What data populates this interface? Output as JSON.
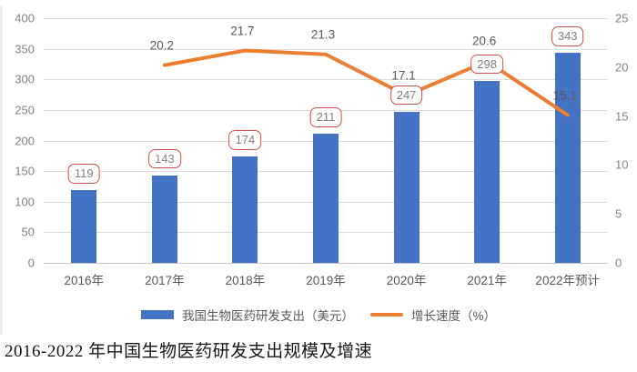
{
  "chart_data": {
    "type": "bar+line",
    "categories": [
      "2016年",
      "2017年",
      "2018年",
      "2019年",
      "2020年",
      "2021年",
      "2022年预计"
    ],
    "series": [
      {
        "name": "我国生物医药研发支出（美元）",
        "type": "bar",
        "axis": "left",
        "values": [
          119,
          143,
          174,
          211,
          247,
          298,
          343
        ],
        "point_labels": [
          "119",
          "143",
          "174",
          "211",
          "247",
          "298",
          "343"
        ]
      },
      {
        "name": "增长速度（%）",
        "type": "line",
        "axis": "right",
        "values": [
          null,
          20.2,
          21.7,
          21.3,
          17.1,
          20.6,
          15.1
        ],
        "point_labels": [
          null,
          "20.2",
          "21.7",
          "21.3",
          "17.1",
          "20.6",
          "15.1"
        ]
      }
    ],
    "left_axis": {
      "min": 0,
      "max": 400,
      "step": 50,
      "labels": [
        "400",
        "350",
        "300",
        "250",
        "200",
        "150",
        "100",
        "50",
        "0"
      ]
    },
    "right_axis": {
      "min": 0,
      "max": 25,
      "step": 5,
      "labels": [
        "25",
        "20",
        "15",
        "10",
        "5",
        "0"
      ]
    },
    "grid": true,
    "legend_position": "bottom",
    "title": "2016-2022 年中国生物医药研发支出规模及增速"
  },
  "legend": {
    "items": [
      {
        "label": "我国生物医药研发支出（美元）",
        "swatch": "bar"
      },
      {
        "label": "增长速度（%）",
        "swatch": "line"
      }
    ]
  },
  "caption": {
    "text": "2016-2022 年中国生物医药研发支出规模及增速"
  },
  "colors": {
    "bar": "#4472c4",
    "line": "#ed7d31",
    "badge_border": "#c9504c",
    "badge_text": "#7f7f7f",
    "axis_text": "#848484",
    "label_text": "#595959",
    "grid": "#dcdcdc",
    "caption_text": "#161616"
  }
}
